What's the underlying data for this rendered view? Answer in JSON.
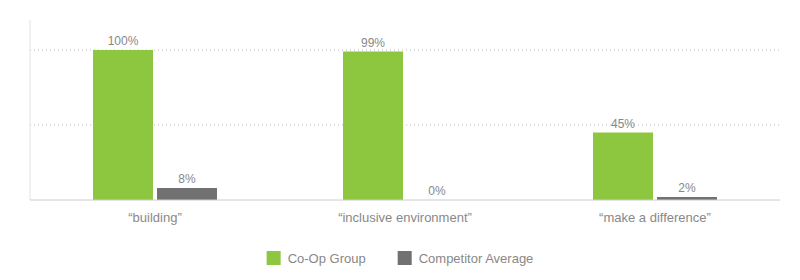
{
  "chart_data": {
    "type": "bar",
    "categories": [
      "“building”",
      "“inclusive environment”",
      "“make a difference”"
    ],
    "series": [
      {
        "name": "Co-Op Group",
        "color": "#8dc63f",
        "values": [
          100,
          99,
          45
        ],
        "value_labels": [
          "100%",
          "99%",
          "45%"
        ]
      },
      {
        "name": "Competitor Average",
        "color": "#717171",
        "values": [
          8,
          0,
          2
        ],
        "value_labels": [
          "8%",
          "0%",
          "2%"
        ]
      }
    ],
    "ylim": [
      0,
      120
    ],
    "yticks": [
      50,
      100
    ],
    "grid": true,
    "legend": "bottom",
    "data_labels": true,
    "tick_labels": "x"
  }
}
